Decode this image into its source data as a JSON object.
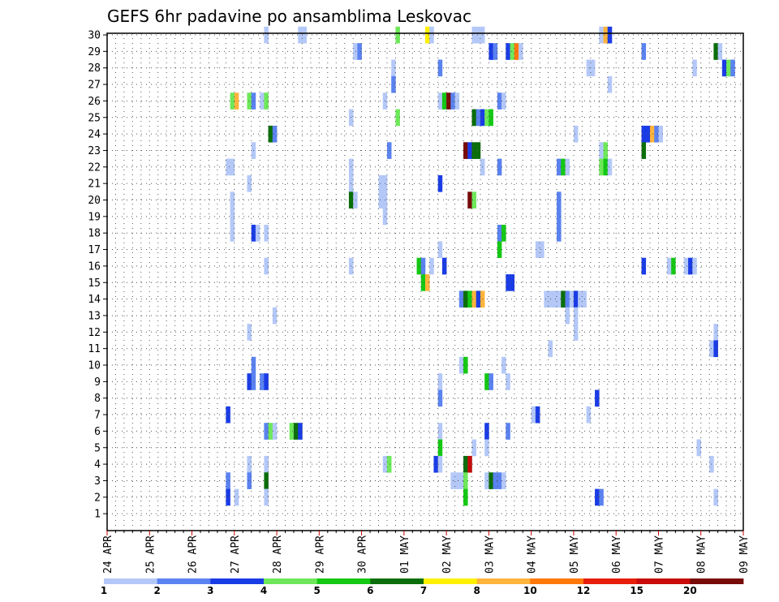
{
  "chart_data": {
    "type": "heatmap",
    "title": "GEFS 6hr padavine po ansamblima Leskovac",
    "y_ticks": [
      "30",
      "29",
      "28",
      "27",
      "26",
      "25",
      "24",
      "23",
      "22",
      "21",
      "20",
      "19",
      "18",
      "17",
      "16",
      "15",
      "14",
      "13",
      "12",
      "11",
      "10",
      "9",
      "8",
      "7",
      "6",
      "5",
      "4",
      "3",
      "2",
      "1"
    ],
    "x_ticks": [
      "24 APR",
      "25 APR",
      "26 APR",
      "27 APR",
      "28 APR",
      "29 APR",
      "30 APR",
      "01 MAY",
      "02 MAY",
      "03 MAY",
      "04 MAY",
      "05 MAY",
      "06 MAY",
      "07 MAY",
      "08 MAY",
      "09 MAY"
    ],
    "grid": true,
    "legend_position": "bottom",
    "legend": {
      "colors": [
        "#b4c8f8",
        "#5a82f0",
        "#1a3ce6",
        "#6ee85a",
        "#14c814",
        "#0a6e0a",
        "#fff000",
        "#ffb43c",
        "#ff780a",
        "#e61e0a",
        "#c80a0a",
        "#780a0a"
      ],
      "labels": [
        "1",
        "2",
        "3",
        "4",
        "5",
        "6",
        "7",
        "8",
        "10",
        "12",
        "15",
        "20"
      ]
    },
    "cells": [
      {
        "member": 30,
        "step": 37,
        "value": 1
      },
      {
        "member": 30,
        "step": 45,
        "value": 1
      },
      {
        "member": 30,
        "step": 46,
        "value": 1
      },
      {
        "member": 30,
        "step": 68,
        "value": 4
      },
      {
        "member": 30,
        "step": 75,
        "value": 7
      },
      {
        "member": 30,
        "step": 76,
        "value": 1
      },
      {
        "member": 30,
        "step": 86,
        "value": 1
      },
      {
        "member": 30,
        "step": 87,
        "value": 1
      },
      {
        "member": 30,
        "step": 88,
        "value": 1
      },
      {
        "member": 30,
        "step": 116,
        "value": 1
      },
      {
        "member": 30,
        "step": 117,
        "value": 8
      },
      {
        "member": 30,
        "step": 118,
        "value": 3
      },
      {
        "member": 29,
        "step": 58,
        "value": 1
      },
      {
        "member": 29,
        "step": 59,
        "value": 2
      },
      {
        "member": 29,
        "step": 90,
        "value": 3
      },
      {
        "member": 29,
        "step": 91,
        "value": 2
      },
      {
        "member": 29,
        "step": 94,
        "value": 3
      },
      {
        "member": 29,
        "step": 95,
        "value": 4
      },
      {
        "member": 29,
        "step": 96,
        "value": 10
      },
      {
        "member": 29,
        "step": 97,
        "value": 1
      },
      {
        "member": 29,
        "step": 126,
        "value": 2
      },
      {
        "member": 29,
        "step": 143,
        "value": 6
      },
      {
        "member": 29,
        "step": 144,
        "value": 1
      },
      {
        "member": 28,
        "step": 67,
        "value": 1
      },
      {
        "member": 28,
        "step": 78,
        "value": 2
      },
      {
        "member": 28,
        "step": 113,
        "value": 1
      },
      {
        "member": 28,
        "step": 114,
        "value": 1
      },
      {
        "member": 28,
        "step": 138,
        "value": 1
      },
      {
        "member": 28,
        "step": 145,
        "value": 3
      },
      {
        "member": 28,
        "step": 146,
        "value": 4
      },
      {
        "member": 28,
        "step": 147,
        "value": 2
      },
      {
        "member": 27,
        "step": 67,
        "value": 2
      },
      {
        "member": 27,
        "step": 118,
        "value": 1
      },
      {
        "member": 26,
        "step": 29,
        "value": 4
      },
      {
        "member": 26,
        "step": 30,
        "value": 8
      },
      {
        "member": 26,
        "step": 33,
        "value": 4
      },
      {
        "member": 26,
        "step": 34,
        "value": 2
      },
      {
        "member": 26,
        "step": 36,
        "value": 1
      },
      {
        "member": 26,
        "step": 37,
        "value": 4
      },
      {
        "member": 26,
        "step": 65,
        "value": 1
      },
      {
        "member": 26,
        "step": 78,
        "value": 1
      },
      {
        "member": 26,
        "step": 79,
        "value": 5
      },
      {
        "member": 26,
        "step": 80,
        "value": 20
      },
      {
        "member": 26,
        "step": 81,
        "value": 2
      },
      {
        "member": 26,
        "step": 82,
        "value": 1
      },
      {
        "member": 26,
        "step": 92,
        "value": 2
      },
      {
        "member": 26,
        "step": 93,
        "value": 1
      },
      {
        "member": 25,
        "step": 57,
        "value": 1
      },
      {
        "member": 25,
        "step": 68,
        "value": 4
      },
      {
        "member": 25,
        "step": 86,
        "value": 6
      },
      {
        "member": 25,
        "step": 87,
        "value": 2
      },
      {
        "member": 25,
        "step": 88,
        "value": 3
      },
      {
        "member": 25,
        "step": 89,
        "value": 4
      },
      {
        "member": 25,
        "step": 90,
        "value": 5
      },
      {
        "member": 24,
        "step": 38,
        "value": 6
      },
      {
        "member": 24,
        "step": 39,
        "value": 2
      },
      {
        "member": 24,
        "step": 110,
        "value": 1
      },
      {
        "member": 24,
        "step": 126,
        "value": 3
      },
      {
        "member": 24,
        "step": 127,
        "value": 3
      },
      {
        "member": 24,
        "step": 128,
        "value": 8
      },
      {
        "member": 24,
        "step": 129,
        "value": 2
      },
      {
        "member": 24,
        "step": 130,
        "value": 1
      },
      {
        "member": 23,
        "step": 34,
        "value": 1
      },
      {
        "member": 23,
        "step": 66,
        "value": 2
      },
      {
        "member": 23,
        "step": 84,
        "value": 20
      },
      {
        "member": 23,
        "step": 85,
        "value": 3
      },
      {
        "member": 23,
        "step": 86,
        "value": 6
      },
      {
        "member": 23,
        "step": 87,
        "value": 6
      },
      {
        "member": 23,
        "step": 116,
        "value": 1
      },
      {
        "member": 23,
        "step": 117,
        "value": 4
      },
      {
        "member": 23,
        "step": 126,
        "value": 6
      },
      {
        "member": 22,
        "step": 28,
        "value": 1
      },
      {
        "member": 22,
        "step": 29,
        "value": 1
      },
      {
        "member": 22,
        "step": 57,
        "value": 1
      },
      {
        "member": 22,
        "step": 88,
        "value": 1
      },
      {
        "member": 22,
        "step": 92,
        "value": 2
      },
      {
        "member": 22,
        "step": 106,
        "value": 2
      },
      {
        "member": 22,
        "step": 107,
        "value": 5
      },
      {
        "member": 22,
        "step": 108,
        "value": 1
      },
      {
        "member": 22,
        "step": 116,
        "value": 4
      },
      {
        "member": 22,
        "step": 117,
        "value": 5
      },
      {
        "member": 22,
        "step": 118,
        "value": 1
      },
      {
        "member": 21,
        "step": 33,
        "value": 1
      },
      {
        "member": 21,
        "step": 57,
        "value": 1
      },
      {
        "member": 21,
        "step": 64,
        "value": 1
      },
      {
        "member": 21,
        "step": 65,
        "value": 1
      },
      {
        "member": 21,
        "step": 78,
        "value": 3
      },
      {
        "member": 20,
        "step": 29,
        "value": 1
      },
      {
        "member": 20,
        "step": 57,
        "value": 6
      },
      {
        "member": 20,
        "step": 58,
        "value": 1
      },
      {
        "member": 20,
        "step": 64,
        "value": 1
      },
      {
        "member": 20,
        "step": 65,
        "value": 1
      },
      {
        "member": 20,
        "step": 85,
        "value": 20
      },
      {
        "member": 20,
        "step": 86,
        "value": 4
      },
      {
        "member": 20,
        "step": 106,
        "value": 2
      },
      {
        "member": 19,
        "step": 29,
        "value": 1
      },
      {
        "member": 19,
        "step": 65,
        "value": 1
      },
      {
        "member": 19,
        "step": 106,
        "value": 2
      },
      {
        "member": 18,
        "step": 29,
        "value": 1
      },
      {
        "member": 18,
        "step": 34,
        "value": 3
      },
      {
        "member": 18,
        "step": 35,
        "value": 1
      },
      {
        "member": 18,
        "step": 37,
        "value": 1
      },
      {
        "member": 18,
        "step": 92,
        "value": 2
      },
      {
        "member": 18,
        "step": 93,
        "value": 5
      },
      {
        "member": 18,
        "step": 106,
        "value": 2
      },
      {
        "member": 17,
        "step": 78,
        "value": 1
      },
      {
        "member": 17,
        "step": 92,
        "value": 5
      },
      {
        "member": 17,
        "step": 101,
        "value": 1
      },
      {
        "member": 17,
        "step": 102,
        "value": 1
      },
      {
        "member": 16,
        "step": 37,
        "value": 1
      },
      {
        "member": 16,
        "step": 57,
        "value": 1
      },
      {
        "member": 16,
        "step": 73,
        "value": 5
      },
      {
        "member": 16,
        "step": 74,
        "value": 2
      },
      {
        "member": 16,
        "step": 76,
        "value": 1
      },
      {
        "member": 16,
        "step": 79,
        "value": 3
      },
      {
        "member": 16,
        "step": 126,
        "value": 3
      },
      {
        "member": 16,
        "step": 132,
        "value": 1
      },
      {
        "member": 16,
        "step": 133,
        "value": 5
      },
      {
        "member": 16,
        "step": 136,
        "value": 1
      },
      {
        "member": 16,
        "step": 137,
        "value": 3
      },
      {
        "member": 16,
        "step": 138,
        "value": 1
      },
      {
        "member": 15,
        "step": 74,
        "value": 5
      },
      {
        "member": 15,
        "step": 75,
        "value": 8
      },
      {
        "member": 15,
        "step": 94,
        "value": 3
      },
      {
        "member": 15,
        "step": 95,
        "value": 3
      },
      {
        "member": 14,
        "step": 83,
        "value": 2
      },
      {
        "member": 14,
        "step": 84,
        "value": 6
      },
      {
        "member": 14,
        "step": 85,
        "value": 5
      },
      {
        "member": 14,
        "step": 86,
        "value": 8
      },
      {
        "member": 14,
        "step": 87,
        "value": 3
      },
      {
        "member": 14,
        "step": 88,
        "value": 8
      },
      {
        "member": 14,
        "step": 103,
        "value": 1
      },
      {
        "member": 14,
        "step": 104,
        "value": 1
      },
      {
        "member": 14,
        "step": 105,
        "value": 1
      },
      {
        "member": 14,
        "step": 106,
        "value": 1
      },
      {
        "member": 14,
        "step": 107,
        "value": 6
      },
      {
        "member": 14,
        "step": 108,
        "value": 2
      },
      {
        "member": 14,
        "step": 109,
        "value": 1
      },
      {
        "member": 14,
        "step": 110,
        "value": 3
      },
      {
        "member": 14,
        "step": 111,
        "value": 1
      },
      {
        "member": 14,
        "step": 112,
        "value": 1
      },
      {
        "member": 13,
        "step": 39,
        "value": 1
      },
      {
        "member": 13,
        "step": 108,
        "value": 1
      },
      {
        "member": 13,
        "step": 110,
        "value": 1
      },
      {
        "member": 12,
        "step": 33,
        "value": 1
      },
      {
        "member": 12,
        "step": 110,
        "value": 1
      },
      {
        "member": 12,
        "step": 143,
        "value": 1
      },
      {
        "member": 11,
        "step": 104,
        "value": 1
      },
      {
        "member": 11,
        "step": 142,
        "value": 1
      },
      {
        "member": 11,
        "step": 143,
        "value": 3
      },
      {
        "member": 10,
        "step": 34,
        "value": 2
      },
      {
        "member": 10,
        "step": 83,
        "value": 1
      },
      {
        "member": 10,
        "step": 84,
        "value": 5
      },
      {
        "member": 10,
        "step": 93,
        "value": 1
      },
      {
        "member": 9,
        "step": 33,
        "value": 3
      },
      {
        "member": 9,
        "step": 34,
        "value": 2
      },
      {
        "member": 9,
        "step": 36,
        "value": 2
      },
      {
        "member": 9,
        "step": 37,
        "value": 3
      },
      {
        "member": 9,
        "step": 78,
        "value": 1
      },
      {
        "member": 9,
        "step": 89,
        "value": 5
      },
      {
        "member": 9,
        "step": 90,
        "value": 2
      },
      {
        "member": 9,
        "step": 94,
        "value": 1
      },
      {
        "member": 8,
        "step": 78,
        "value": 2
      },
      {
        "member": 8,
        "step": 115,
        "value": 3
      },
      {
        "member": 7,
        "step": 28,
        "value": 3
      },
      {
        "member": 7,
        "step": 100,
        "value": 1
      },
      {
        "member": 7,
        "step": 101,
        "value": 3
      },
      {
        "member": 7,
        "step": 113,
        "value": 1
      },
      {
        "member": 6,
        "step": 37,
        "value": 2
      },
      {
        "member": 6,
        "step": 38,
        "value": 4
      },
      {
        "member": 6,
        "step": 39,
        "value": 1
      },
      {
        "member": 6,
        "step": 43,
        "value": 4
      },
      {
        "member": 6,
        "step": 44,
        "value": 6
      },
      {
        "member": 6,
        "step": 45,
        "value": 3
      },
      {
        "member": 6,
        "step": 78,
        "value": 1
      },
      {
        "member": 6,
        "step": 89,
        "value": 3
      },
      {
        "member": 6,
        "step": 94,
        "value": 2
      },
      {
        "member": 5,
        "step": 78,
        "value": 5
      },
      {
        "member": 5,
        "step": 86,
        "value": 1
      },
      {
        "member": 5,
        "step": 89,
        "value": 1
      },
      {
        "member": 5,
        "step": 139,
        "value": 1
      },
      {
        "member": 4,
        "step": 33,
        "value": 1
      },
      {
        "member": 4,
        "step": 37,
        "value": 1
      },
      {
        "member": 4,
        "step": 65,
        "value": 1
      },
      {
        "member": 4,
        "step": 66,
        "value": 4
      },
      {
        "member": 4,
        "step": 77,
        "value": 3
      },
      {
        "member": 4,
        "step": 78,
        "value": 1
      },
      {
        "member": 4,
        "step": 84,
        "value": 6
      },
      {
        "member": 4,
        "step": 85,
        "value": 15
      },
      {
        "member": 4,
        "step": 142,
        "value": 1
      },
      {
        "member": 3,
        "step": 28,
        "value": 2
      },
      {
        "member": 3,
        "step": 33,
        "value": 2
      },
      {
        "member": 3,
        "step": 37,
        "value": 6
      },
      {
        "member": 3,
        "step": 81,
        "value": 1
      },
      {
        "member": 3,
        "step": 82,
        "value": 1
      },
      {
        "member": 3,
        "step": 83,
        "value": 1
      },
      {
        "member": 3,
        "step": 84,
        "value": 4
      },
      {
        "member": 3,
        "step": 89,
        "value": 1
      },
      {
        "member": 3,
        "step": 90,
        "value": 6
      },
      {
        "member": 3,
        "step": 91,
        "value": 2
      },
      {
        "member": 3,
        "step": 92,
        "value": 2
      },
      {
        "member": 3,
        "step": 93,
        "value": 1
      },
      {
        "member": 2,
        "step": 28,
        "value": 3
      },
      {
        "member": 2,
        "step": 30,
        "value": 1
      },
      {
        "member": 2,
        "step": 37,
        "value": 1
      },
      {
        "member": 2,
        "step": 84,
        "value": 5
      },
      {
        "member": 2,
        "step": 115,
        "value": 3
      },
      {
        "member": 2,
        "step": 116,
        "value": 2
      },
      {
        "member": 2,
        "step": 143,
        "value": 1
      }
    ]
  }
}
